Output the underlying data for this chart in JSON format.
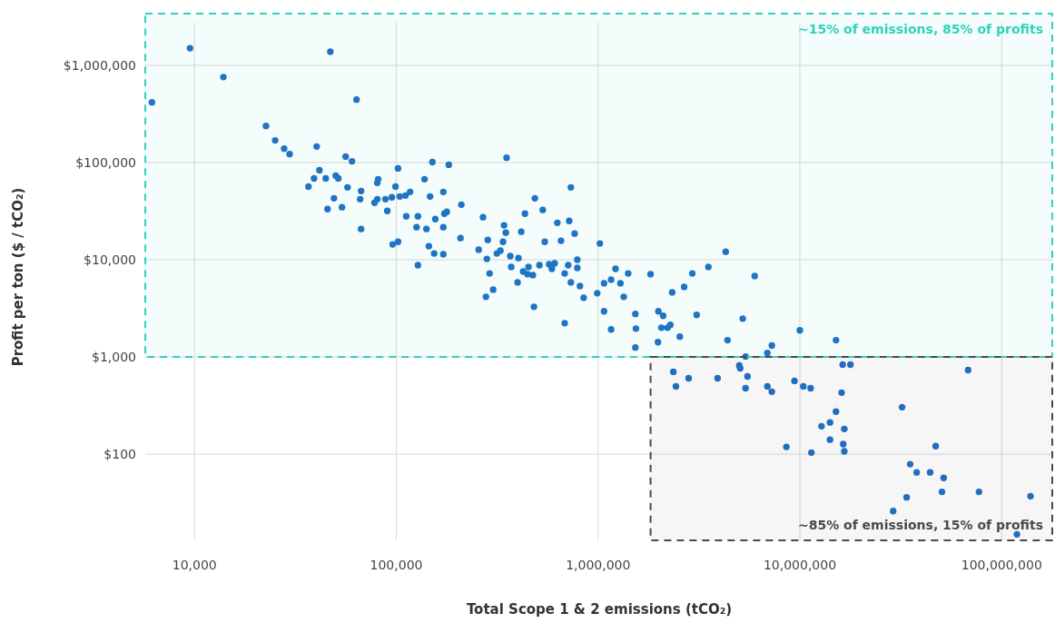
{
  "chart_data": {
    "type": "scatter",
    "xlabel": "Total Scope 1 & 2 emissions (tCO₂)",
    "ylabel": "Profit per ton ($ / tCO₂)",
    "log": "xy",
    "grid": true,
    "marker": "circle",
    "xlim": [
      5700,
      180000000
    ],
    "ylim": [
      13,
      3400000
    ],
    "xticks": [
      {
        "value": 10000,
        "label": "10,000"
      },
      {
        "value": 100000,
        "label": "100,000"
      },
      {
        "value": 1000000,
        "label": "1,000,000"
      },
      {
        "value": 10000000,
        "label": "10,000,000"
      },
      {
        "value": 100000000,
        "label": "100,000,000"
      }
    ],
    "yticks": [
      {
        "value": 100,
        "label": "$100"
      },
      {
        "value": 1000,
        "label": "$1,000"
      },
      {
        "value": 10000,
        "label": "$10,000"
      },
      {
        "value": 100000,
        "label": "$100,000"
      },
      {
        "value": 1000000,
        "label": "$1,000,000"
      }
    ],
    "bands": [
      {
        "axis": "y",
        "from": 1000,
        "to": 3400000,
        "label": "~15% of emissions, 85% of profits",
        "color": "#2fd3bd"
      },
      {
        "axis": "x",
        "from": 1820000,
        "to": 180000000,
        "label": "~85% of emissions, 15% of profits",
        "color": "#4a4a4a"
      }
    ],
    "series": [
      {
        "color": "#1f6fc5",
        "x": [
          6150,
          9500,
          13900,
          47100,
          63500,
          22600,
          25100,
          27800,
          29600,
          40300,
          56100,
          60300,
          36700,
          39100,
          41600,
          44700,
          49100,
          45600,
          50100,
          51600,
          53800,
          57300,
          66200,
          66900,
          66900,
          78000,
          80500,
          80500,
          81300,
          88300,
          90200,
          95000,
          99100,
          102000,
          102000,
          104000,
          112000,
          111000,
          117000,
          128000,
          126000,
          141000,
          95900,
          128000,
          138000,
          151000,
          182000,
          147000,
          171000,
          156000,
          171000,
          173000,
          178000,
          145000,
          154000,
          171000,
          210000,
          208000,
          269000,
          256000,
          284000,
          281000,
          290000,
          302000,
          278000,
          352000,
          342000,
          349000,
          338000,
          315000,
          328000,
          367000,
          403000,
          371000,
          399000,
          416000,
          434000,
          486000,
          532000,
          425000,
          452000,
          447000,
          475000,
          481000,
          512000,
          544000,
          628000,
          655000,
          572000,
          590000,
          609000,
          683000,
          683000,
          733000,
          719000,
          765000,
          711000,
          733000,
          789000,
          789000,
          813000,
          848000,
          990000,
          1020000,
          1070000,
          1070000,
          1160000,
          1220000,
          1290000,
          1340000,
          1410000,
          1160000,
          1530000,
          1540000,
          1820000,
          1530000,
          2330000,
          2670000,
          2930000,
          3520000,
          4290000,
          5970000,
          1990000,
          2100000,
          2060000,
          2210000,
          2280000,
          2540000,
          1980000,
          3080000,
          5210000,
          4380000,
          5380000,
          6900000,
          7260000,
          10000000,
          15100000,
          16300000,
          17800000,
          2360000,
          2430000,
          2810000,
          3910000,
          5010000,
          5060000,
          5500000,
          5380000,
          6900000,
          7260000,
          9400000,
          10400000,
          11300000,
          16100000,
          68200000,
          32100000,
          15100000,
          12800000,
          14100000,
          16600000,
          14100000,
          16400000,
          16600000,
          8570000,
          11400000,
          47100000,
          35200000,
          37900000,
          44200000,
          51600000,
          50600000,
          77200000,
          139000000,
          33800000,
          29000000,
          119000000
        ],
        "values": [
          416000,
          1500000,
          757000,
          1380000,
          444000,
          238000,
          169000,
          139000,
          122000,
          146000,
          115000,
          103000,
          56600,
          68700,
          83400,
          68700,
          42900,
          33200,
          73300,
          68700,
          34700,
          55500,
          42000,
          50900,
          20700,
          38600,
          42000,
          61800,
          67300,
          42000,
          31800,
          43900,
          56600,
          87100,
          15300,
          44800,
          28000,
          45700,
          49900,
          28000,
          21600,
          20700,
          14400,
          8790,
          67300,
          101000,
          94800,
          44800,
          49900,
          26200,
          21600,
          29800,
          31100,
          13800,
          11600,
          11400,
          36900,
          16700,
          27400,
          12700,
          16000,
          10200,
          7240,
          4930,
          4160,
          112000,
          22600,
          19000,
          15300,
          11600,
          12400,
          10900,
          10400,
          8430,
          5850,
          19400,
          29800,
          42900,
          32500,
          7570,
          8430,
          7100,
          6950,
          3280,
          8790,
          15300,
          24000,
          15700,
          8980,
          8070,
          9180,
          7240,
          2230,
          55500,
          25100,
          18600,
          8790,
          5850,
          10000,
          8240,
          5370,
          4070,
          4530,
          14700,
          2950,
          5730,
          6240,
          8070,
          5730,
          4160,
          7240,
          1920,
          2770,
          1960,
          7100,
          1250,
          4620,
          5260,
          7240,
          8430,
          12100,
          6810,
          2950,
          2650,
          2000,
          2000,
          2140,
          1620,
          1420,
          2710,
          2480,
          1490,
          1010,
          1100,
          1310,
          1880,
          1490,
          834,
          834,
          703,
          499,
          604,
          604,
          817,
          766,
          631,
          477,
          499,
          439,
          567,
          499,
          477,
          430,
          733,
          305,
          274,
          194,
          212,
          182,
          141,
          127,
          107,
          119,
          104,
          121,
          79,
          65,
          65,
          57,
          41,
          41,
          37,
          36,
          26,
          15
        ]
      }
    ]
  }
}
